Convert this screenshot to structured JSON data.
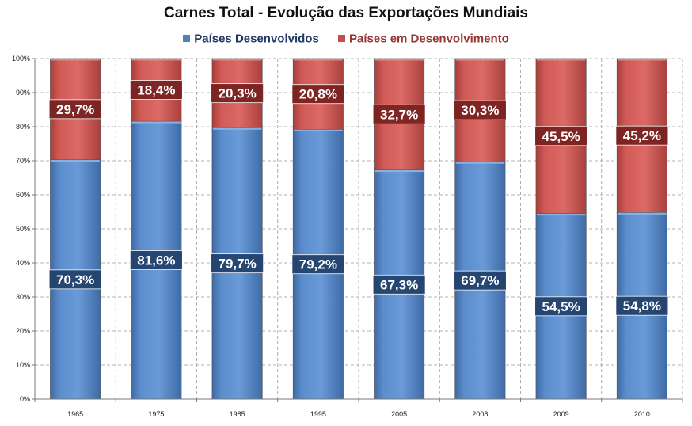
{
  "chart_data": {
    "type": "bar",
    "stacked": true,
    "title": "Carnes Total - Evolução das Exportações Mundiais",
    "xlabel": "",
    "ylabel": "",
    "categories": [
      "1965",
      "1975",
      "1985",
      "1995",
      "2005",
      "2008",
      "2009",
      "2010"
    ],
    "series": [
      {
        "name": "Países Desenvolvidos",
        "color": "#4f81bd",
        "text_color": "#1f3864",
        "values": [
          70.3,
          81.6,
          79.7,
          79.2,
          67.3,
          69.7,
          54.5,
          54.8
        ],
        "labels": [
          "70,3%",
          "81,6%",
          "79,7%",
          "79,2%",
          "67,3%",
          "69,7%",
          "54,5%",
          "54,8%"
        ]
      },
      {
        "name": "Países em Desenvolvimento",
        "color": "#c0504d",
        "text_color": "#943634",
        "values": [
          29.7,
          18.4,
          20.3,
          20.8,
          32.7,
          30.3,
          45.5,
          45.2
        ],
        "labels": [
          "29,7%",
          "18,4%",
          "20,3%",
          "20,8%",
          "32,7%",
          "30,3%",
          "45,5%",
          "45,2%"
        ]
      }
    ],
    "ylim": [
      0,
      100
    ],
    "yticks": [
      "0%",
      "10%",
      "20%",
      "30%",
      "40%",
      "50%",
      "60%",
      "70%",
      "80%",
      "90%",
      "100%"
    ],
    "grid": true,
    "legend_position": "top"
  }
}
